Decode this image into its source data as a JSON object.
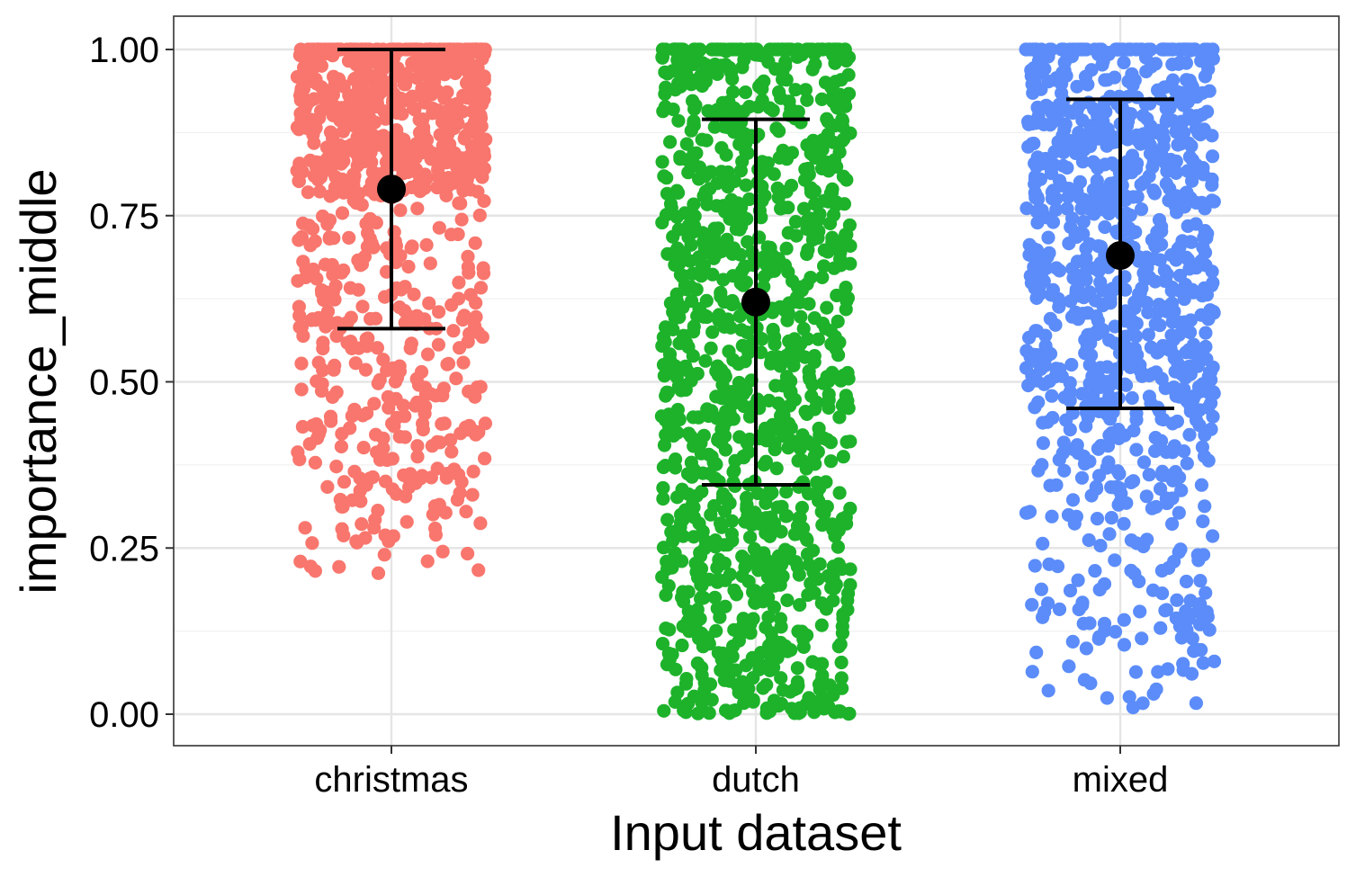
{
  "colors": {
    "christmas": "#F8766D",
    "dutch": "#1DB22A",
    "mixed": "#5B8CF9",
    "summary": "#000000",
    "grid_major": "#E5E5E5",
    "grid_minor": "#F0F0F0",
    "panel_border": "#333333"
  },
  "chart_data": {
    "type": "scatter",
    "subtype": "jitter with mean and error bars",
    "title": "",
    "xlabel": "Input dataset",
    "ylabel": "importance_middle",
    "categories": [
      "christmas",
      "dutch",
      "mixed"
    ],
    "ylim": [
      -0.05,
      1.05
    ],
    "yticks": [
      0.0,
      0.25,
      0.5,
      0.75,
      1.0
    ],
    "ytick_labels": [
      "0.00",
      "0.25",
      "0.50",
      "0.75",
      "1.00"
    ],
    "grid": true,
    "legend": "none",
    "series": [
      {
        "category": "christmas",
        "mean": 0.79,
        "error_low": 0.58,
        "error_high": 1.0,
        "n_points": 900,
        "distribution": {
          "min": 0.21,
          "max": 1.0,
          "mode": 1.0,
          "dense_above": 0.78
        }
      },
      {
        "category": "dutch",
        "mean": 0.62,
        "error_low": 0.345,
        "error_high": 0.895,
        "n_points": 1200,
        "distribution": {
          "min": 0.0,
          "max": 1.0,
          "mode": "uniform"
        }
      },
      {
        "category": "mixed",
        "mean": 0.69,
        "error_low": 0.46,
        "error_high": 0.925,
        "n_points": 1000,
        "distribution": {
          "min": 0.0,
          "max": 1.0,
          "mode": 1.0,
          "dense_above": 0.45
        }
      }
    ]
  }
}
